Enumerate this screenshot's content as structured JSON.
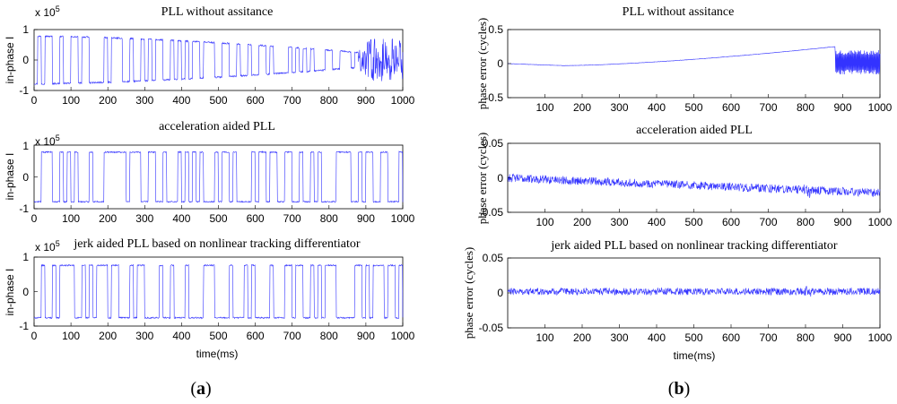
{
  "panel_labels": {
    "a": "(a)",
    "b": "(b)"
  },
  "colors": {
    "signal": "#3333ff",
    "axes": "#000000"
  },
  "chart_data": [
    {
      "id": "a1",
      "type": "line",
      "title": "PLL without assitance",
      "ylabel": "in-phase I",
      "xlabel": "",
      "exponent_label": "x 10",
      "exponent_power": "5",
      "xlim": [
        0,
        1000
      ],
      "ylim": [
        -1,
        1
      ],
      "xticks": [
        "0",
        "100",
        "200",
        "300",
        "400",
        "500",
        "600",
        "700",
        "800",
        "900",
        "1000"
      ],
      "yticks": [
        "-1",
        "0",
        "1"
      ],
      "series": [
        {
          "name": "in-phase I",
          "pattern": "bitflip_decay",
          "amplitude_start": 0.78,
          "amplitude_min": 0.15,
          "decay_point_ms": 880,
          "bit_period_ms": 10
        }
      ]
    },
    {
      "id": "a2",
      "type": "line",
      "title": "acceleration aided PLL",
      "ylabel": "in-phase I",
      "xlabel": "",
      "exponent_label": "x 10",
      "exponent_power": "5",
      "xlim": [
        0,
        1000
      ],
      "ylim": [
        -1,
        1
      ],
      "xticks": [
        "0",
        "100",
        "200",
        "300",
        "400",
        "500",
        "600",
        "700",
        "800",
        "900",
        "1000"
      ],
      "yticks": [
        "-1",
        "0",
        "1"
      ],
      "series": [
        {
          "name": "in-phase I",
          "pattern": "bitflip",
          "amplitude": 0.78,
          "bit_period_ms": 10
        }
      ]
    },
    {
      "id": "a3",
      "type": "line",
      "title": "jerk aided PLL based on nonlinear tracking differentiator",
      "ylabel": "in-phase I",
      "xlabel": "time(ms)",
      "exponent_label": "x 10",
      "exponent_power": "5",
      "xlim": [
        0,
        1000
      ],
      "ylim": [
        -1,
        1
      ],
      "xticks": [
        "0",
        "100",
        "200",
        "300",
        "400",
        "500",
        "600",
        "700",
        "800",
        "900",
        "1000"
      ],
      "yticks": [
        "-1",
        "0",
        "1"
      ],
      "series": [
        {
          "name": "in-phase I",
          "pattern": "bitflip",
          "amplitude": 0.76,
          "bit_period_ms": 10
        }
      ]
    },
    {
      "id": "b1",
      "type": "line",
      "title": "PLL without assitance",
      "ylabel": "phase error (cycles)",
      "xlabel": "",
      "xlim": [
        0,
        1000
      ],
      "ylim": [
        -0.5,
        0.5
      ],
      "xticks": [
        "100",
        "200",
        "300",
        "400",
        "500",
        "600",
        "700",
        "800",
        "900",
        "1000"
      ],
      "yticks": [
        "-0.5",
        "0",
        "0.5"
      ],
      "series": [
        {
          "name": "phase error",
          "pattern": "drift_then_oscillate",
          "start": 0.0,
          "min": -0.03,
          "min_at_ms": 150,
          "end_before_jump": 0.25,
          "jump_at_ms": 880,
          "osc_center": 0.0,
          "osc_amplitude": 0.18,
          "noise": 0.004
        }
      ]
    },
    {
      "id": "b2",
      "type": "line",
      "title": "acceleration aided PLL",
      "ylabel": "phase error (cycles)",
      "xlabel": "",
      "xlim": [
        0,
        1000
      ],
      "ylim": [
        -0.05,
        0.05
      ],
      "xticks": [
        "100",
        "200",
        "300",
        "400",
        "500",
        "600",
        "700",
        "800",
        "900",
        "1000"
      ],
      "yticks": [
        "-0.05",
        "0",
        "0.05"
      ],
      "series": [
        {
          "name": "phase error",
          "pattern": "noise_trend",
          "start": 0.0,
          "end": -0.022,
          "noise": 0.006
        }
      ]
    },
    {
      "id": "b3",
      "type": "line",
      "title": "jerk aided PLL based on nonlinear tracking differentiator",
      "ylabel": "phase error (cycles)",
      "xlabel": "time(ms)",
      "xlim": [
        0,
        1000
      ],
      "ylim": [
        -0.05,
        0.05
      ],
      "xticks": [
        "100",
        "200",
        "300",
        "400",
        "500",
        "600",
        "700",
        "800",
        "900",
        "1000"
      ],
      "yticks": [
        "-0.05",
        "0",
        "0.05"
      ],
      "series": [
        {
          "name": "phase error",
          "pattern": "noise_trend",
          "start": 0.002,
          "end": 0.002,
          "noise": 0.005
        }
      ]
    }
  ]
}
